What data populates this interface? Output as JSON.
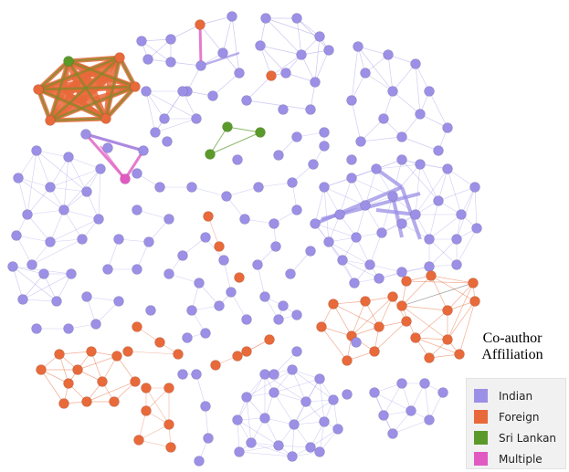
{
  "colors": {
    "indian": "#9b8fe6",
    "foreign": "#e8693a",
    "srilankan": "#5a9a2a",
    "multiple": "#e05ac2"
  },
  "legend": {
    "title_line1": "Co-author",
    "title_line2": "Affiliation",
    "items": [
      {
        "label": "Indian",
        "color": "#9b8fe6"
      },
      {
        "label": "Foreign",
        "color": "#e8693a"
      },
      {
        "label": "Sri Lankan",
        "color": "#5a9a2a"
      },
      {
        "label": "Multiple",
        "color": "#e05ac2"
      }
    ]
  }
}
